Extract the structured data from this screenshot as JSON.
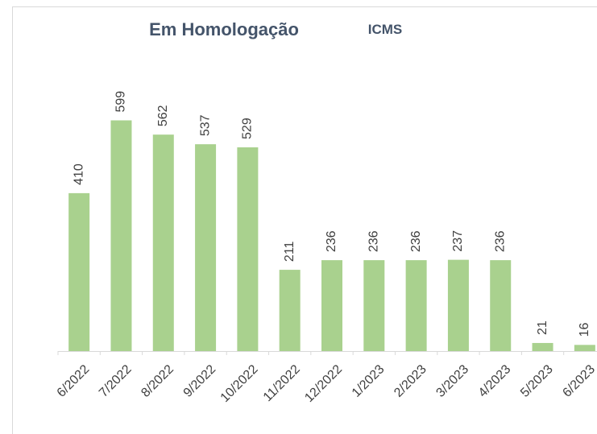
{
  "chart_data": {
    "type": "bar",
    "title": "Em Homologação",
    "subtitle": "ICMS",
    "categories": [
      "6/2022",
      "7/2022",
      "8/2022",
      "9/2022",
      "10/2022",
      "11/2022",
      "12/2022",
      "1/2023",
      "2/2023",
      "3/2023",
      "4/2023",
      "5/2023",
      "6/2023"
    ],
    "values": [
      410,
      599,
      562,
      537,
      529,
      211,
      236,
      236,
      236,
      237,
      236,
      21,
      16
    ],
    "color": "#a9d18e",
    "ylim": [
      0,
      600
    ]
  }
}
